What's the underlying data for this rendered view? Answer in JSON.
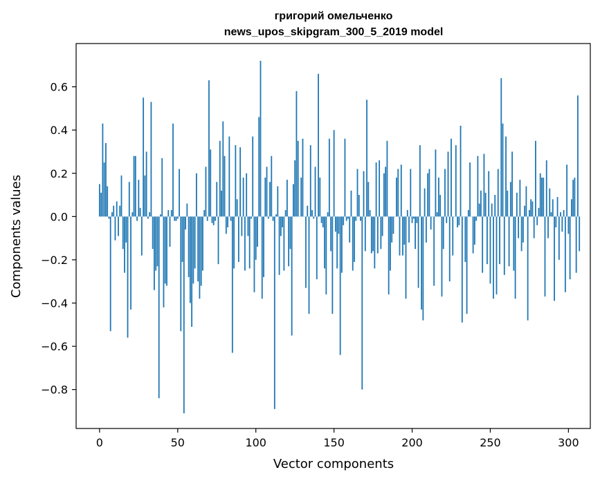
{
  "chart_data": {
    "type": "bar",
    "title_line1": "григорий омельченко",
    "title_line2": "news_upos_skipgram_300_5_2019 model",
    "xlabel": "Vector components",
    "ylabel": "Components values",
    "xlim": [
      -15,
      314
    ],
    "ylim": [
      -0.98,
      0.8
    ],
    "x_ticks": [
      0,
      50,
      100,
      150,
      200,
      250,
      300
    ],
    "y_ticks": [
      -0.8,
      -0.6,
      -0.4,
      -0.2,
      0.0,
      0.2,
      0.4,
      0.6
    ],
    "x_tick_labels": [
      "0",
      "50",
      "100",
      "150",
      "200",
      "250",
      "300"
    ],
    "y_tick_labels": [
      "−0.8",
      "−0.6",
      "−0.4",
      "−0.2",
      "0.0",
      "0.2",
      "0.4",
      "0.6"
    ],
    "bar_color": "#1f77b4",
    "grid": false,
    "values": [
      0.15,
      0.11,
      0.43,
      0.25,
      0.34,
      0.14,
      -0.01,
      -0.53,
      0.02,
      0.05,
      -0.11,
      0.07,
      -0.09,
      0.05,
      0.19,
      -0.15,
      -0.26,
      -0.12,
      -0.56,
      0.16,
      -0.43,
      0.02,
      0.28,
      0.28,
      -0.02,
      0.17,
      0.04,
      -0.18,
      0.55,
      0.19,
      0.3,
      -0.01,
      0.02,
      0.53,
      -0.15,
      -0.34,
      -0.25,
      -0.23,
      -0.84,
      0.01,
      0.27,
      -0.42,
      -0.31,
      -0.32,
      0.03,
      -0.14,
      0.03,
      0.43,
      -0.02,
      -0.02,
      -0.01,
      0.22,
      -0.53,
      -0.21,
      -0.91,
      -0.06,
      0.06,
      -0.28,
      -0.4,
      -0.51,
      -0.31,
      -0.24,
      0.2,
      -0.3,
      -0.38,
      -0.32,
      -0.25,
      0.03,
      0.23,
      -0.02,
      0.63,
      0.31,
      -0.03,
      -0.04,
      -0.02,
      0.16,
      -0.22,
      0.35,
      0.12,
      0.44,
      0.28,
      -0.08,
      -0.05,
      0.37,
      -0.02,
      -0.63,
      -0.24,
      0.33,
      0.08,
      -0.21,
      0.32,
      -0.09,
      0.18,
      -0.25,
      0.2,
      -0.09,
      -0.24,
      -0.01,
      0.37,
      -0.35,
      -0.2,
      -0.14,
      0.46,
      0.72,
      -0.38,
      -0.28,
      0.18,
      0.23,
      -0.01,
      0.16,
      0.28,
      -0.02,
      -0.89,
      0.01,
      0.14,
      -0.27,
      -0.09,
      -0.05,
      -0.25,
      0.03,
      0.17,
      -0.23,
      -0.15,
      -0.55,
      0.15,
      0.26,
      0.58,
      0.35,
      0.0,
      0.18,
      0.36,
      0.0,
      -0.33,
      0.05,
      -0.45,
      0.33,
      0.03,
      -0.01,
      0.23,
      -0.29,
      0.66,
      0.18,
      -0.03,
      -0.05,
      -0.24,
      -0.36,
      0.02,
      0.36,
      -0.16,
      -0.45,
      0.4,
      -0.07,
      -0.24,
      -0.08,
      -0.64,
      -0.26,
      -0.04,
      0.36,
      -0.02,
      -0.01,
      -0.12,
      0.12,
      -0.25,
      -0.21,
      -0.02,
      0.22,
      0.1,
      -0.02,
      -0.8,
      0.21,
      -0.16,
      0.54,
      0.16,
      0.03,
      -0.17,
      -0.16,
      -0.24,
      0.25,
      -0.17,
      0.26,
      -0.15,
      -0.09,
      0.2,
      0.23,
      0.35,
      -0.36,
      -0.25,
      -0.12,
      -0.08,
      0.0,
      0.18,
      0.22,
      -0.18,
      0.24,
      -0.18,
      -0.13,
      -0.38,
      0.03,
      -0.12,
      0.22,
      -0.03,
      -0.01,
      -0.15,
      -0.03,
      -0.33,
      0.33,
      -0.43,
      -0.48,
      0.13,
      -0.12,
      0.2,
      0.22,
      -0.06,
      0.0,
      -0.32,
      0.31,
      0.02,
      0.18,
      0.1,
      -0.37,
      -0.15,
      0.22,
      -0.03,
      0.3,
      -0.3,
      0.36,
      -0.18,
      0.0,
      0.33,
      -0.05,
      -0.04,
      0.42,
      -0.49,
      0.0,
      -0.21,
      -0.45,
      0.03,
      0.25,
      0.0,
      -0.17,
      -0.13,
      -0.02,
      0.28,
      0.06,
      0.12,
      -0.26,
      0.29,
      0.11,
      -0.22,
      0.21,
      -0.31,
      0.06,
      -0.38,
      0.1,
      -0.36,
      0.22,
      -0.22,
      0.64,
      0.43,
      -0.27,
      0.37,
      0.12,
      -0.23,
      0.16,
      0.3,
      -0.25,
      -0.38,
      0.11,
      -0.1,
      0.17,
      -0.16,
      -0.12,
      0.05,
      0.14,
      -0.48,
      0.03,
      0.08,
      0.07,
      -0.1,
      0.35,
      -0.04,
      0.04,
      0.2,
      0.18,
      0.18,
      -0.37,
      0.26,
      -0.1,
      0.13,
      0.02,
      0.08,
      -0.39,
      -0.05,
      0.09,
      -0.2,
      0.02,
      -0.07,
      0.03,
      -0.35,
      0.24,
      -0.08,
      -0.29,
      0.08,
      0.17,
      0.18,
      -0.26,
      0.56,
      -0.16
    ]
  }
}
